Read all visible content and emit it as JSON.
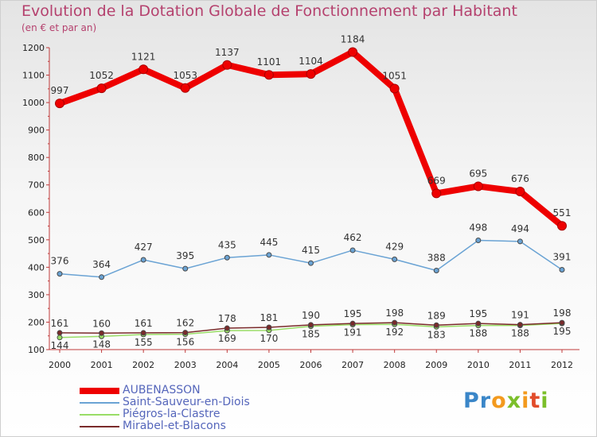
{
  "title": "Evolution de la Dotation Globale de Fonctionnement par Habitant",
  "subtitle": "(en € et par an)",
  "logo": {
    "text": "Proxiti",
    "colors": [
      "#3a86c8",
      "#f39a1e",
      "#7bbf2a",
      "#e24c2a"
    ]
  },
  "chart_data": {
    "type": "line",
    "x": [
      "2000",
      "2001",
      "2002",
      "2003",
      "2004",
      "2005",
      "2006",
      "2007",
      "2008",
      "2009",
      "2010",
      "2011",
      "2012"
    ],
    "ylim": [
      100,
      1200
    ],
    "yticks": [
      "100",
      "200",
      "300",
      "400",
      "500",
      "600",
      "700",
      "800",
      "900",
      "1000",
      "1100",
      "1200"
    ],
    "grid": false,
    "legend_position": "bottom-left",
    "series": [
      {
        "name": "AUBENASSON",
        "color": "#ee0000",
        "values": [
          997,
          1052,
          1121,
          1053,
          1137,
          1101,
          1104,
          1184,
          1051,
          669,
          695,
          676,
          551
        ]
      },
      {
        "name": "Saint-Sauveur-en-Diois",
        "color": "#6aa3d4",
        "values": [
          376,
          364,
          427,
          395,
          435,
          445,
          415,
          462,
          429,
          388,
          498,
          494,
          391
        ]
      },
      {
        "name": "Piégros-la-Clastre",
        "color": "#99dd66",
        "values": [
          144,
          148,
          155,
          156,
          169,
          170,
          185,
          191,
          192,
          183,
          188,
          188,
          195
        ]
      },
      {
        "name": "Mirabel-et-Blacons",
        "color": "#7a2a2a",
        "values": [
          161,
          160,
          161,
          162,
          178,
          181,
          190,
          195,
          198,
          189,
          195,
          191,
          198
        ]
      }
    ]
  }
}
